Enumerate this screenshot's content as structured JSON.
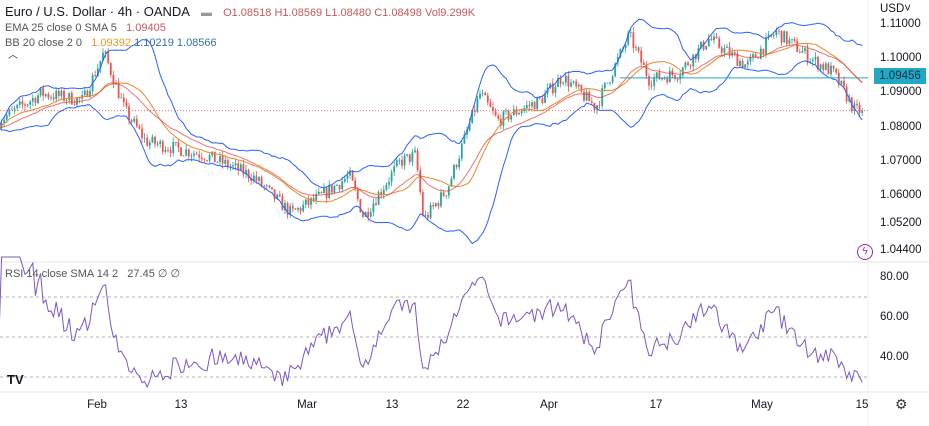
{
  "header": {
    "title": "Euro / U.S. Dollar · 4h · OANDA",
    "open": "O1.08518",
    "high": "H1.08569",
    "low": "L1.08480",
    "close": "C1.08498",
    "volume": "Vol9.299K"
  },
  "indicators": {
    "ema": {
      "label": "EMA 25 close 0 SMA 5",
      "value": "1.09405"
    },
    "bb": {
      "label": "BB 20 close 2 0",
      "basis": "1.09392",
      "upper": "1.10219",
      "lower": "1.08566"
    },
    "rsi": {
      "label": "RSI 14 close SMA 14 2",
      "value": "27.45",
      "extra": "∅ ∅"
    }
  },
  "price_axis": {
    "currency": "USD",
    "labels": [
      "1.11000",
      "1.10000",
      "1.09000",
      "1.08000",
      "1.07000",
      "1.06000",
      "1.05200",
      "1.04400"
    ],
    "highlight": "1.09456"
  },
  "rsi_axis": {
    "labels": [
      "80.00",
      "60.00",
      "40.00"
    ]
  },
  "time_axis": [
    "Feb",
    "13",
    "Mar",
    "13",
    "22",
    "Apr",
    "17",
    "May",
    "15"
  ],
  "colors": {
    "up": "#26a69a",
    "down": "#ef5350",
    "bb": "#2962ff",
    "ema": "#e8892a",
    "rsi": "#7e57c2",
    "highlight": "#22a7c4"
  },
  "chart_data": {
    "type": "candlestick",
    "interval": "4h",
    "key_closes": [
      [
        "2023-01-18",
        1.082
      ],
      [
        "2023-01-24",
        1.09
      ],
      [
        "2023-01-30",
        1.088
      ],
      [
        "2023-02-02",
        1.102
      ],
      [
        "2023-02-05",
        1.085
      ],
      [
        "2023-02-08",
        1.076
      ],
      [
        "2023-02-16",
        1.072
      ],
      [
        "2023-02-22",
        1.066
      ],
      [
        "2023-02-27",
        1.055
      ],
      [
        "2023-03-03",
        1.06
      ],
      [
        "2023-03-07",
        1.066
      ],
      [
        "2023-03-09",
        1.054
      ],
      [
        "2023-03-14",
        1.07
      ],
      [
        "2023-03-16",
        1.072
      ],
      [
        "2023-03-17",
        1.053
      ],
      [
        "2023-03-20",
        1.062
      ],
      [
        "2023-03-24",
        1.09
      ],
      [
        "2023-03-26",
        1.082
      ],
      [
        "2023-03-31",
        1.088
      ],
      [
        "2023-04-03",
        1.095
      ],
      [
        "2023-04-08",
        1.086
      ],
      [
        "2023-04-13",
        1.107
      ],
      [
        "2023-04-16",
        1.094
      ],
      [
        "2023-04-20",
        1.096
      ],
      [
        "2023-04-24",
        1.106
      ],
      [
        "2023-04-29",
        1.098
      ],
      [
        "2023-05-03",
        1.108
      ],
      [
        "2023-05-08",
        1.1
      ],
      [
        "2023-05-11",
        1.096
      ],
      [
        "2023-05-14",
        1.085
      ]
    ],
    "ylim": [
      1.04,
      1.114
    ],
    "rsi_levels": [
      70,
      50,
      30
    ]
  }
}
